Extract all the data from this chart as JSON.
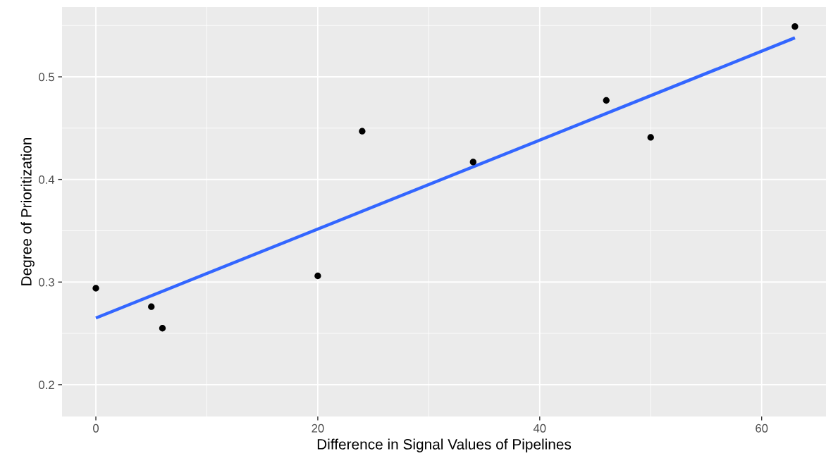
{
  "chart_data": {
    "type": "scatter",
    "xlabel": "Difference in Signal Values of Pipelines",
    "ylabel": "Degree of Prioritization",
    "x": [
      0,
      5,
      6,
      20,
      24,
      34,
      46,
      50,
      63
    ],
    "series": [
      {
        "color": "#000000",
        "values": [
          0.294,
          0.276,
          0.255,
          0.306,
          0.447,
          0.417,
          0.477,
          0.441,
          0.549
        ],
        "marker": "circle"
      },
      {
        "type": "line",
        "color": "#3366ff",
        "x": [
          0,
          63
        ],
        "values": [
          0.265,
          0.538
        ],
        "marker": "none"
      }
    ],
    "xlim": [
      -3.05,
      65.8
    ],
    "ylim": [
      0.169,
      0.568
    ],
    "xticks": [
      0,
      20,
      40,
      60
    ],
    "yticks": [
      0.2,
      0.3,
      0.4,
      0.5
    ],
    "grid": true
  }
}
